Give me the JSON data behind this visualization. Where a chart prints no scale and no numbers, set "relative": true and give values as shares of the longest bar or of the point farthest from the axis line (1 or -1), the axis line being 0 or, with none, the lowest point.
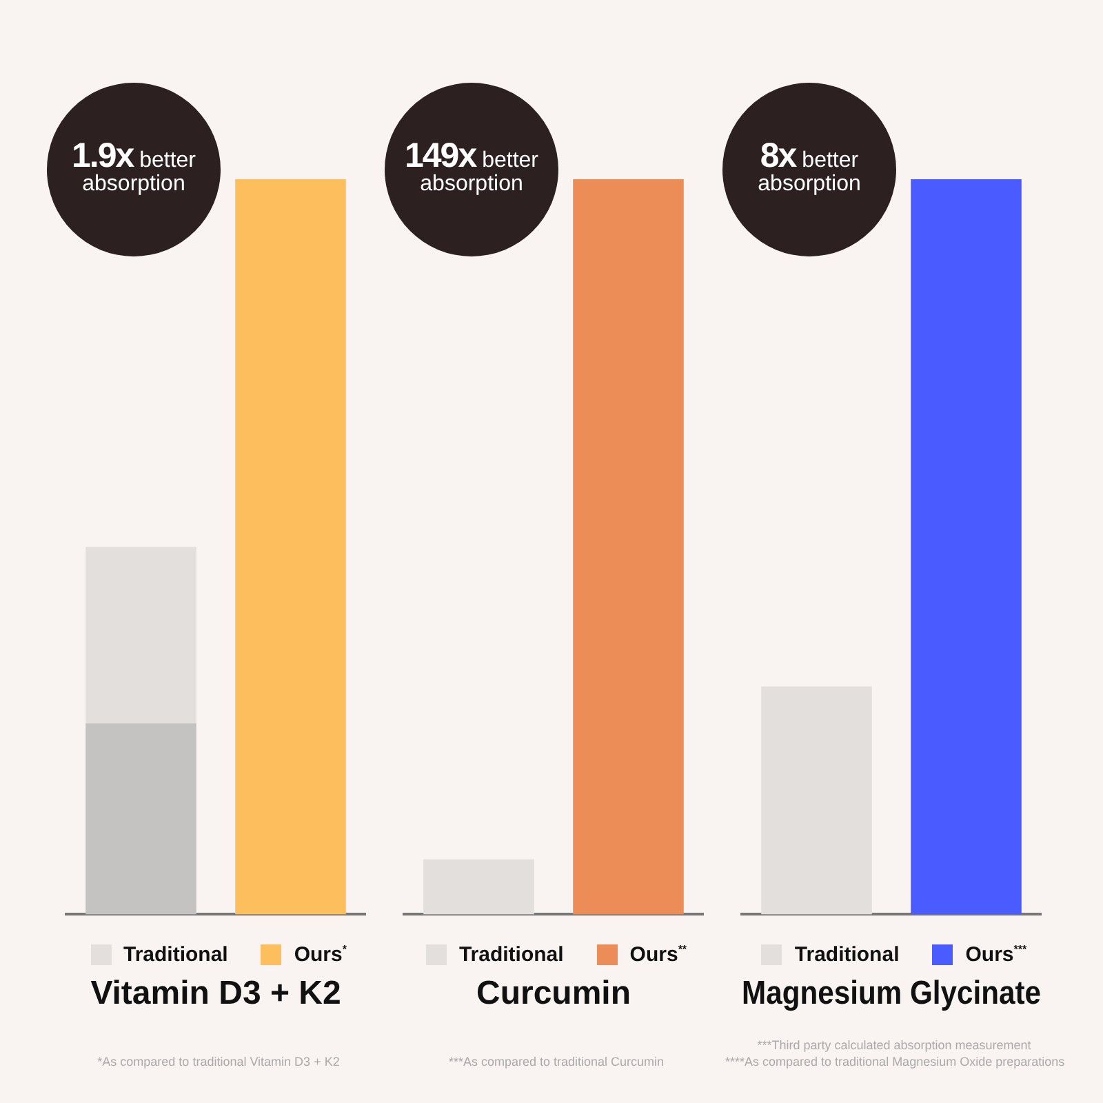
{
  "chart_data": [
    {
      "type": "bar",
      "relative": true,
      "stacked": true,
      "title": "Vitamin D3 + K2",
      "categories": [
        null,
        null
      ],
      "legend": "bottom",
      "series": [
        {
          "color": "#c4c3c2",
          "values": [
            0.26,
            null
          ]
        },
        {
          "name": "Traditional",
          "color": "#e2dfdc",
          "values": [
            0.24,
            null
          ]
        },
        {
          "name": "Ours$^{*}$",
          "color": "#fdbf5e",
          "values": [
            null,
            1
          ]
        }
      ],
      "annotations": [
        "1.9x better absorption",
        "*As compared to traditional Vitamin D3 + K2"
      ]
    },
    {
      "type": "bar",
      "relative": true,
      "stacked": true,
      "title": "Curcumin",
      "categories": [
        null,
        null
      ],
      "legend": "bottom",
      "series": [
        {
          "name": "Traditional",
          "color": "#e2dfdc",
          "values": [
            0.075,
            null
          ]
        },
        {
          "name": "Ours$^{**}$",
          "color": "#ec8d58",
          "values": [
            null,
            1
          ]
        }
      ],
      "annotations": [
        "149x better absorption",
        "***As compared to traditional Curcumin"
      ]
    },
    {
      "type": "bar",
      "relative": true,
      "stacked": true,
      "title": "Magnesium Glycinate",
      "categories": [
        null,
        null
      ],
      "legend": "bottom",
      "series": [
        {
          "name": "Traditional",
          "color": "#e2dfdc",
          "values": [
            0.31,
            null
          ]
        },
        {
          "name": "Ours$^{***}$",
          "color": "#4a5bff",
          "values": [
            null,
            1
          ]
        }
      ],
      "annotations": [
        "8x better absorption",
        "***Third party calculated absorption measurement",
        "****As compared to traditional Magnesium Oxide preparations"
      ]
    }
  ]
}
